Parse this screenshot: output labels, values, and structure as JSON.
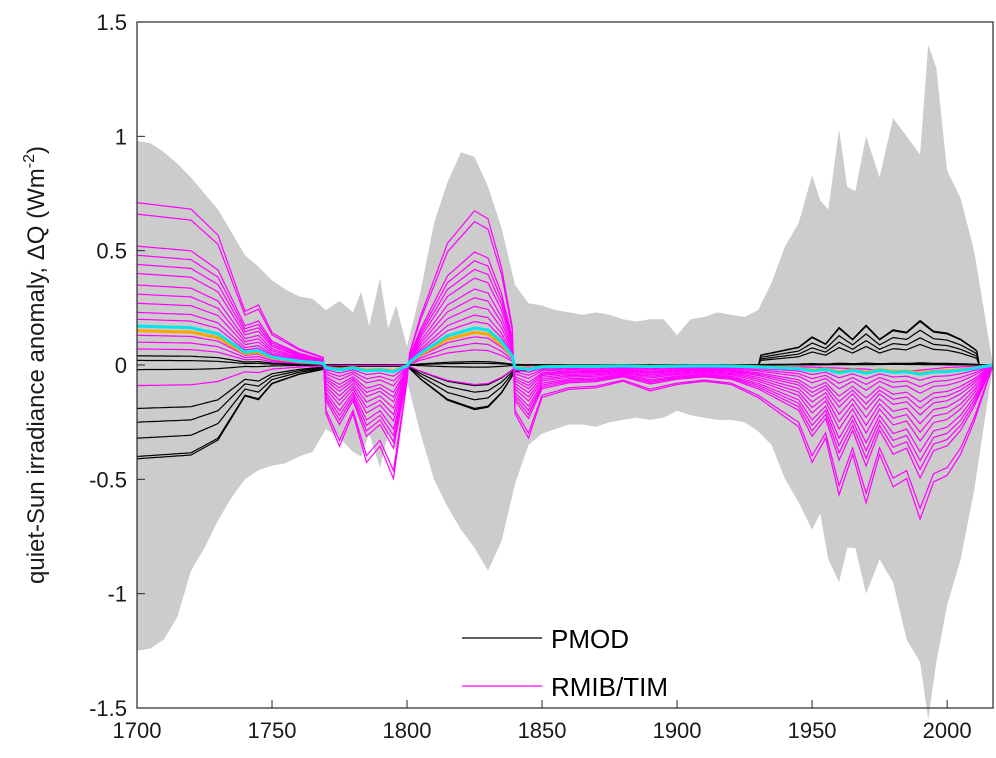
{
  "chart_data": {
    "type": "line",
    "ylabel": {
      "main": "quiet-Sun irradiance anomaly, ΔQ  (Wm",
      "sup": "-2",
      "close": ")"
    },
    "xlabel": "",
    "xlim": [
      1700,
      2017
    ],
    "ylim": [
      -1.5,
      1.5
    ],
    "xticks": [
      1700,
      1750,
      1800,
      1850,
      1900,
      1950,
      2000
    ],
    "yticks": [
      1.5,
      1,
      0.5,
      0,
      -0.5,
      -1,
      -1.5
    ],
    "xtick_labels": [
      "1700",
      "1750",
      "1800",
      "1850",
      "1900",
      "1950",
      "2000"
    ],
    "ytick_labels": [
      "1.5",
      "1",
      "0.5",
      "0",
      "-0.5",
      "-1",
      "-1.5"
    ],
    "grid": false,
    "legend": {
      "placement": "bottom-center",
      "entries": [
        {
          "label": "PMOD",
          "color": "#000000"
        },
        {
          "label": "RMIB/TIM",
          "color": "#ff00ff"
        }
      ]
    },
    "colors": {
      "envelope": "#cccccc",
      "pmod": "#000000",
      "rmib": "#ff00ff",
      "mean_orange": "#ffa500",
      "mean_cyan": "#00e5ee"
    },
    "envelope": {
      "x": [
        1700,
        1705,
        1710,
        1715,
        1720,
        1725,
        1730,
        1735,
        1740,
        1745,
        1750,
        1755,
        1760,
        1765,
        1770,
        1775,
        1780,
        1783,
        1786,
        1790,
        1793,
        1796,
        1800,
        1805,
        1810,
        1815,
        1820,
        1825,
        1830,
        1835,
        1840,
        1845,
        1850,
        1855,
        1860,
        1865,
        1870,
        1875,
        1880,
        1885,
        1890,
        1895,
        1900,
        1905,
        1910,
        1915,
        1920,
        1925,
        1930,
        1935,
        1940,
        1945,
        1950,
        1953,
        1956,
        1960,
        1963,
        1966,
        1970,
        1975,
        1980,
        1985,
        1990,
        1993,
        1996,
        2000,
        2005,
        2010,
        2017
      ],
      "upper": [
        0.98,
        0.97,
        0.93,
        0.88,
        0.82,
        0.75,
        0.68,
        0.58,
        0.48,
        0.43,
        0.37,
        0.33,
        0.3,
        0.29,
        0.24,
        0.28,
        0.23,
        0.32,
        0.17,
        0.38,
        0.16,
        0.26,
        0.08,
        0.32,
        0.62,
        0.8,
        0.93,
        0.91,
        0.78,
        0.6,
        0.35,
        0.27,
        0.26,
        0.24,
        0.23,
        0.22,
        0.23,
        0.22,
        0.2,
        0.19,
        0.2,
        0.2,
        0.13,
        0.2,
        0.21,
        0.23,
        0.22,
        0.21,
        0.24,
        0.36,
        0.52,
        0.62,
        0.83,
        0.72,
        0.68,
        1.03,
        0.78,
        0.76,
        1.0,
        0.82,
        1.08,
        1.0,
        0.92,
        1.4,
        1.3,
        0.85,
        0.73,
        0.5,
        0.0
      ],
      "lower": [
        -1.25,
        -1.24,
        -1.2,
        -1.1,
        -0.9,
        -0.8,
        -0.68,
        -0.58,
        -0.5,
        -0.46,
        -0.44,
        -0.43,
        -0.4,
        -0.38,
        -0.28,
        -0.32,
        -0.38,
        -0.4,
        -0.3,
        -0.45,
        -0.3,
        -0.38,
        -0.07,
        -0.3,
        -0.5,
        -0.62,
        -0.72,
        -0.8,
        -0.9,
        -0.77,
        -0.52,
        -0.35,
        -0.3,
        -0.28,
        -0.26,
        -0.26,
        -0.27,
        -0.25,
        -0.24,
        -0.23,
        -0.24,
        -0.23,
        -0.2,
        -0.22,
        -0.23,
        -0.24,
        -0.24,
        -0.25,
        -0.29,
        -0.35,
        -0.5,
        -0.6,
        -0.72,
        -0.65,
        -0.85,
        -0.95,
        -0.8,
        -0.8,
        -1.0,
        -0.85,
        -0.95,
        -1.2,
        -1.3,
        -1.55,
        -1.3,
        -1.05,
        -0.85,
        -0.55,
        0.0
      ]
    },
    "shapes": {
      "profile_positive": {
        "x": [
          1700,
          1720,
          1730,
          1740,
          1745,
          1750,
          1760,
          1770,
          1780,
          1790,
          1800,
          1805,
          1815,
          1825,
          1830,
          1835,
          1840,
          1850,
          1860,
          1870,
          1880,
          1890,
          1900,
          1910,
          1920,
          1930,
          1940,
          1950,
          1960,
          1970,
          1980,
          1990,
          2000,
          2010,
          2017
        ],
        "y": [
          1.0,
          0.96,
          0.8,
          0.33,
          0.37,
          0.2,
          0.1,
          0.04,
          0.03,
          0.03,
          0.02,
          0.3,
          0.75,
          0.95,
          0.9,
          0.6,
          0.14,
          0.07,
          0.05,
          0.05,
          0.04,
          0.07,
          0.04,
          0.03,
          0.03,
          0.05,
          0.08,
          0.1,
          0.15,
          0.2,
          0.35,
          0.25,
          0.12,
          0.06,
          0.0
        ]
      },
      "profile_negative": {
        "x": [
          1700,
          1720,
          1730,
          1740,
          1750,
          1760,
          1770,
          1775,
          1780,
          1785,
          1790,
          1795,
          1800,
          1805,
          1815,
          1825,
          1835,
          1840,
          1845,
          1850,
          1860,
          1870,
          1880,
          1890,
          1900,
          1910,
          1920,
          1930,
          1940,
          1945,
          1950,
          1955,
          1960,
          1965,
          1970,
          1975,
          1980,
          1985,
          1990,
          1995,
          2000,
          2005,
          2010,
          2017
        ],
        "y": [
          0.1,
          0.15,
          0.2,
          0.22,
          0.22,
          0.2,
          0.3,
          0.5,
          0.3,
          0.6,
          0.5,
          0.7,
          0.1,
          0.05,
          0.04,
          0.04,
          0.1,
          0.3,
          0.45,
          0.2,
          0.15,
          0.14,
          0.1,
          0.16,
          0.12,
          0.1,
          0.12,
          0.2,
          0.32,
          0.38,
          0.6,
          0.45,
          0.8,
          0.55,
          0.85,
          0.55,
          0.75,
          0.7,
          0.95,
          0.72,
          0.68,
          0.55,
          0.35,
          0.0
        ]
      }
    },
    "series": [
      {
        "name": "PMOD",
        "color": "#000000",
        "profile": "pmod",
        "amplitudes": [
          0.04,
          -0.19,
          -0.25,
          -0.32,
          -0.4,
          -0.41,
          0.02,
          -0.02
        ]
      },
      {
        "name": "RMIB/TIM",
        "color": "#ff00ff",
        "profile": "rmib",
        "amplitudes": [
          0.71,
          0.66,
          0.52,
          0.48,
          0.44,
          0.4,
          0.35,
          0.31,
          0.27,
          0.23,
          0.2,
          0.17,
          0.13,
          0.1,
          0.07,
          -0.18
        ]
      },
      {
        "color": "#ffa500",
        "profile": "mean",
        "amplitudes": [
          0.15
        ]
      },
      {
        "color": "#00e5ee",
        "profile": "mean",
        "amplitudes": [
          0.17
        ]
      }
    ]
  }
}
